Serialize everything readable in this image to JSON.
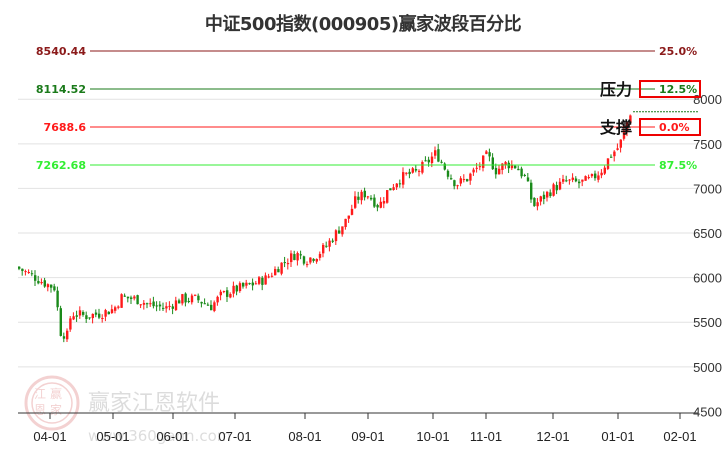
{
  "title": "中证500指数(000905)赢家波段百分比",
  "watermark": {
    "brand": "赢家江恩软件",
    "url": "www.360gann.com",
    "seal": [
      "江",
      "赢",
      "恩",
      "家"
    ]
  },
  "annotations": {
    "resistance": "压力",
    "support": "支撑"
  },
  "colors": {
    "up": "#ff1a1a",
    "down": "#1a8a1a",
    "grid": "#e0e0e0"
  },
  "chart_data": {
    "type": "candlestick",
    "title": "中证500指数(000905)赢家波段百分比",
    "xlabel": "",
    "ylabel": "",
    "ylim": [
      4500,
      8700
    ],
    "y_ticks": [
      4500,
      5000,
      5500,
      6000,
      6500,
      7000,
      7500,
      8000
    ],
    "x_ticks": [
      "04-01",
      "05-01",
      "06-01",
      "07-01",
      "08-01",
      "09-01",
      "10-01",
      "11-01",
      "12-01",
      "01-01",
      "02-01"
    ],
    "levels": [
      {
        "value": 8540.44,
        "label": "8540.44",
        "pct": "25.0%",
        "color": "#8b1a1a"
      },
      {
        "value": 8114.52,
        "label": "8114.52",
        "pct": "12.5%",
        "color": "#1a7a1a",
        "boxed": true
      },
      {
        "value": 7688.6,
        "label": "7688.6",
        "pct": "0.0%",
        "color": "#ff1a1a",
        "boxed": true
      },
      {
        "value": 7262.68,
        "label": "7262.68",
        "pct": "87.5%",
        "color": "#33ee33"
      }
    ],
    "last_close_dotted": 7860,
    "series_approx_close": [
      {
        "month": "03",
        "close": 6100
      },
      {
        "month": "03",
        "close": 6030
      },
      {
        "month": "03",
        "close": 5920
      },
      {
        "month": "04-01",
        "close": 5850
      },
      {
        "month": "04",
        "close": 5250
      },
      {
        "month": "04",
        "close": 5600
      },
      {
        "month": "05-01",
        "close": 5580
      },
      {
        "month": "05",
        "close": 5780
      },
      {
        "month": "05",
        "close": 5700
      },
      {
        "month": "06-01",
        "close": 5650
      },
      {
        "month": "06",
        "close": 5780
      },
      {
        "month": "06",
        "close": 5650
      },
      {
        "month": "07-01",
        "close": 5850
      },
      {
        "month": "07",
        "close": 5950
      },
      {
        "month": "07",
        "close": 6200
      },
      {
        "month": "08-01",
        "close": 6250
      },
      {
        "month": "08",
        "close": 6300
      },
      {
        "month": "08",
        "close": 6550
      },
      {
        "month": "09-01",
        "close": 6950
      },
      {
        "month": "09",
        "close": 6800
      },
      {
        "month": "09",
        "close": 7050
      },
      {
        "month": "10-01",
        "close": 7250
      },
      {
        "month": "10",
        "close": 7100
      },
      {
        "month": "10",
        "close": 7150
      },
      {
        "month": "11-01",
        "close": 7300
      },
      {
        "month": "11",
        "close": 7200
      },
      {
        "month": "11",
        "close": 6900
      },
      {
        "month": "12-01",
        "close": 6950
      },
      {
        "month": "12",
        "close": 7050
      },
      {
        "month": "12",
        "close": 7050
      },
      {
        "month": "01-01",
        "close": 7400
      },
      {
        "month": "01",
        "close": 7880
      }
    ]
  }
}
